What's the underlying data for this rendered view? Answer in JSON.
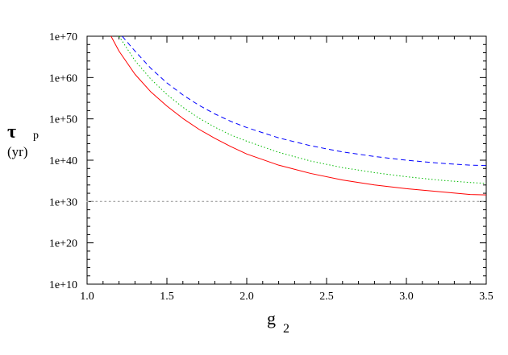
{
  "chart_data": {
    "type": "line",
    "xlabel": "g",
    "xlabel_subscript": "2",
    "ylabel_symbol": "τ",
    "ylabel_subscript": "p",
    "ylabel_unit": "(yr)",
    "xlim": [
      1.0,
      3.5
    ],
    "ylim_exponent": [
      10,
      70
    ],
    "yscale": "log",
    "x_ticks": [
      "1.0",
      "1.5",
      "2.0",
      "2.5",
      "3.0",
      "3.5"
    ],
    "y_ticks": [
      "1e+10",
      "1e+20",
      "1e+30",
      "1e+40",
      "1e+50",
      "1e+60",
      "1e+70"
    ],
    "grid": false,
    "reference_line": {
      "y_exponent": 30,
      "style": "dotted",
      "color": "#aaaaaa"
    },
    "series": [
      {
        "color": "#ff0000",
        "style": "solid",
        "x": [
          1.15,
          1.2,
          1.3,
          1.4,
          1.5,
          1.6,
          1.7,
          1.8,
          1.9,
          2.0,
          2.2,
          2.4,
          2.6,
          2.8,
          3.0,
          3.2,
          3.4,
          3.5
        ],
        "log10_y": [
          70.0,
          66.4,
          60.8,
          56.5,
          53.1,
          50.1,
          47.5,
          45.3,
          43.3,
          41.5,
          38.8,
          36.8,
          35.2,
          34.0,
          33.1,
          32.4,
          31.7,
          31.6
        ]
      },
      {
        "color": "#00bb00",
        "style": "dotted",
        "x": [
          1.2,
          1.3,
          1.4,
          1.5,
          1.6,
          1.7,
          1.8,
          1.9,
          2.0,
          2.2,
          2.4,
          2.6,
          2.8,
          3.0,
          3.2,
          3.4,
          3.5
        ],
        "log10_y": [
          70.0,
          64.1,
          59.6,
          55.9,
          52.8,
          50.2,
          48.0,
          46.1,
          44.6,
          41.9,
          39.8,
          38.2,
          37.0,
          36.0,
          35.2,
          34.6,
          34.4
        ]
      },
      {
        "color": "#0000ff",
        "style": "dashed",
        "x": [
          1.22,
          1.3,
          1.4,
          1.5,
          1.6,
          1.7,
          1.8,
          1.9,
          2.0,
          2.2,
          2.4,
          2.6,
          2.8,
          3.0,
          3.2,
          3.4,
          3.5
        ],
        "log10_y": [
          70.0,
          66.4,
          62.2,
          58.7,
          55.8,
          53.3,
          51.2,
          49.4,
          47.9,
          45.4,
          43.5,
          42.0,
          40.9,
          40.0,
          39.3,
          38.8,
          38.7
        ]
      }
    ]
  }
}
